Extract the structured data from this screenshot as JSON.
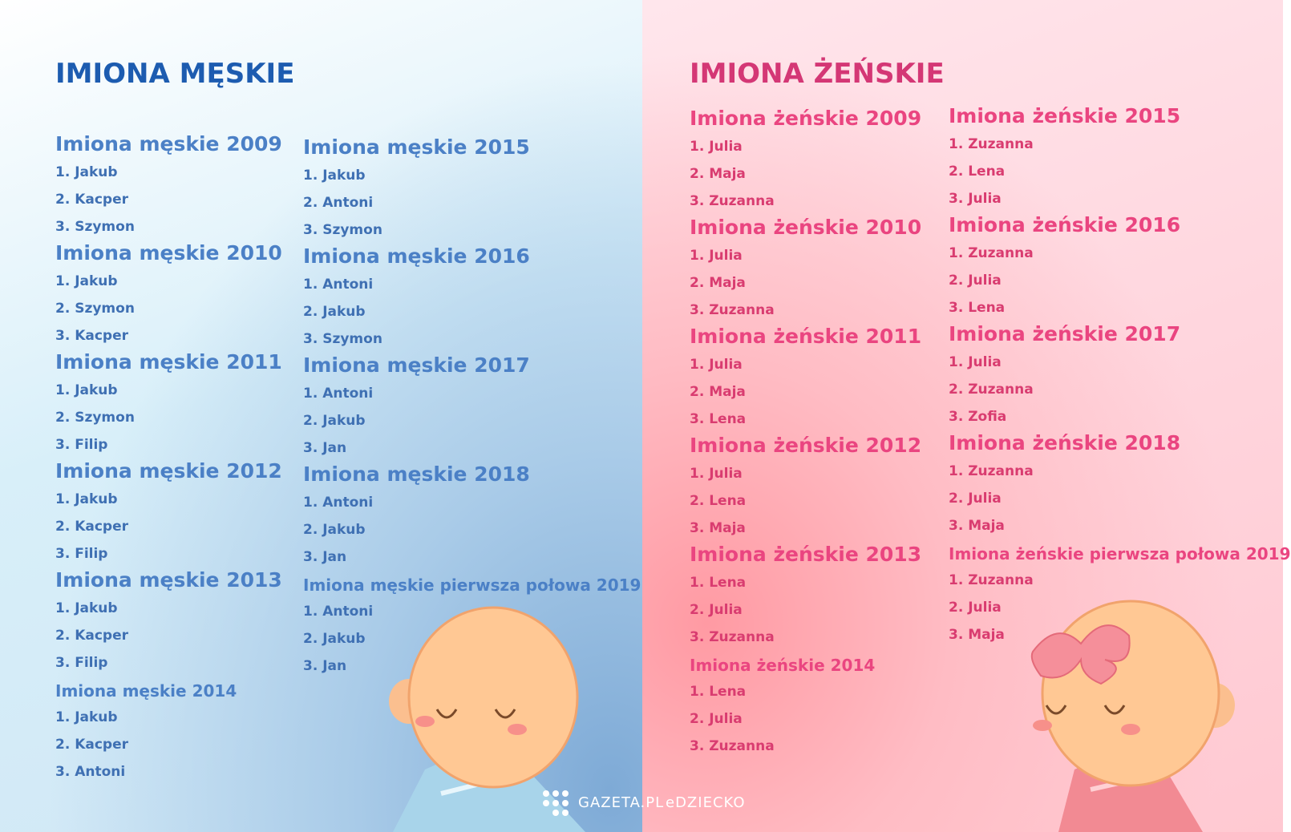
{
  "left": {
    "title": "IMIONA MĘSKIE",
    "columns": [
      [
        {
          "heading": "Imiona męskie 2009",
          "items": [
            "1. Jakub",
            "2. Kacper",
            "3. Szymon"
          ]
        },
        {
          "heading": "Imiona męskie 2010",
          "items": [
            "1. Jakub",
            "2. Szymon",
            "3. Kacper"
          ]
        },
        {
          "heading": "Imiona męskie 2011",
          "items": [
            "1. Jakub",
            "2. Szymon",
            "3. Filip"
          ]
        },
        {
          "heading": "Imiona męskie 2012",
          "items": [
            "1. Jakub",
            "2. Kacper",
            "3. Filip"
          ]
        },
        {
          "heading": "Imiona męskie 2013",
          "items": [
            "1. Jakub",
            "2. Kacper",
            "3. Filip"
          ]
        },
        {
          "heading": "Imiona męskie 2014",
          "items": [
            "1. Jakub",
            "2. Kacper",
            "3. Antoni"
          ]
        }
      ],
      [
        {
          "heading": "Imiona męskie 2015",
          "items": [
            "1. Jakub",
            "2. Antoni",
            "3. Szymon"
          ]
        },
        {
          "heading": "Imiona męskie 2016",
          "items": [
            "1. Antoni",
            "2. Jakub",
            "3. Szymon"
          ]
        },
        {
          "heading": "Imiona męskie 2017",
          "items": [
            "1. Antoni",
            "2. Jakub",
            "3. Jan"
          ]
        },
        {
          "heading": "Imiona męskie 2018",
          "items": [
            "1. Antoni",
            "2. Jakub",
            "3. Jan"
          ]
        },
        {
          "heading": "Imiona męskie pierwsza połowa 2019",
          "items": [
            "1. Antoni",
            "2. Jakub",
            "3. Jan"
          ]
        }
      ]
    ]
  },
  "right": {
    "title": "IMIONA ŻEŃSKIE",
    "columns": [
      [
        {
          "heading": "Imiona żeńskie 2009",
          "items": [
            "1. Julia",
            "2. Maja",
            "3. Zuzanna"
          ]
        },
        {
          "heading": "Imiona żeńskie 2010",
          "items": [
            "1. Julia",
            "2. Maja",
            "3. Zuzanna"
          ]
        },
        {
          "heading": "Imiona żeńskie 2011",
          "items": [
            "1. Julia",
            "2. Maja",
            "3. Lena"
          ]
        },
        {
          "heading": "Imiona żeńskie 2012",
          "items": [
            "1. Julia",
            "2. Lena",
            "3. Maja"
          ]
        },
        {
          "heading": "Imiona żeńskie 2013",
          "items": [
            "1. Lena",
            "2. Julia",
            "3. Zuzanna"
          ]
        },
        {
          "heading": "Imiona żeńskie 2014",
          "items": [
            "1. Lena",
            "2. Julia",
            "3. Zuzanna"
          ]
        }
      ],
      [
        {
          "heading": "Imiona żeńskie 2015",
          "items": [
            "1. Zuzanna",
            "2. Lena",
            "3. Julia"
          ]
        },
        {
          "heading": "Imiona żeńskie 2016",
          "items": [
            "1. Zuzanna",
            "2. Julia",
            "3. Lena"
          ]
        },
        {
          "heading": "Imiona żeńskie 2017",
          "items": [
            "1. Julia",
            "2. Zuzanna",
            "3. Zofia"
          ]
        },
        {
          "heading": "Imiona żeńskie 2018",
          "items": [
            "1. Zuzanna",
            "2. Julia",
            "3. Maja"
          ]
        },
        {
          "heading": "Imiona żeńskie pierwsza połowa 2019",
          "items": [
            "1. Zuzanna",
            "2. Julia",
            "3. Maja"
          ]
        }
      ]
    ]
  },
  "footer": {
    "logo": "GAZETA.PL",
    "brand": "eDZIECKO"
  }
}
